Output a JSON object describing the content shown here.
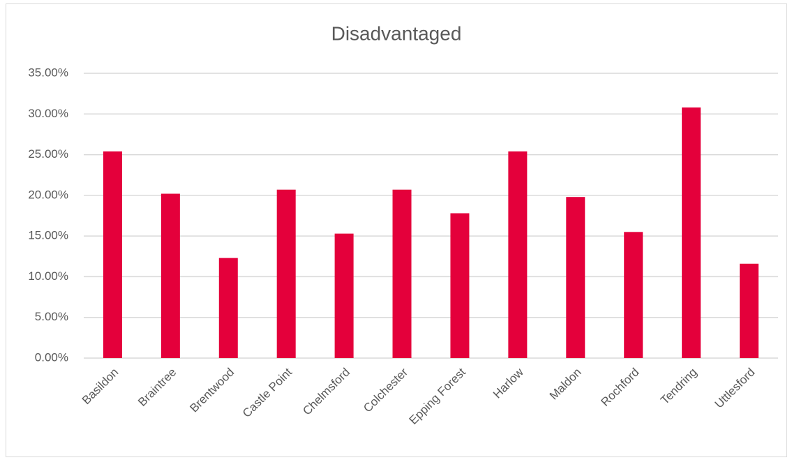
{
  "chart_data": {
    "type": "bar",
    "title": "Disadvantaged",
    "categories": [
      "Basildon",
      "Braintree",
      "Brentwood",
      "Castle Point",
      "Chelmsford",
      "Colchester",
      "Epping Forest",
      "Harlow",
      "Maldon",
      "Rochford",
      "Tendring",
      "Uttlesford"
    ],
    "values": [
      25.4,
      20.2,
      12.3,
      20.7,
      15.3,
      20.7,
      17.8,
      25.4,
      19.8,
      15.5,
      30.8,
      11.6
    ],
    "color": "#e4003b",
    "ylim": [
      0,
      35
    ],
    "yticks": [
      {
        "value": 0,
        "label": "0.00%"
      },
      {
        "value": 5,
        "label": "5.00%"
      },
      {
        "value": 10,
        "label": "10.00%"
      },
      {
        "value": 15,
        "label": "15.00%"
      },
      {
        "value": 20,
        "label": "20.00%"
      },
      {
        "value": 25,
        "label": "25.00%"
      },
      {
        "value": 30,
        "label": "30.00%"
      },
      {
        "value": 35,
        "label": "35.00%"
      }
    ],
    "grid": true
  }
}
